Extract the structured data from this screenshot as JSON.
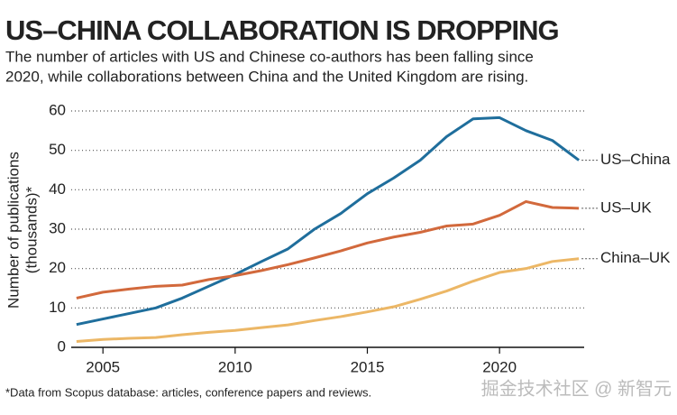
{
  "chart_data": {
    "type": "line",
    "title": "US–CHINA COLLABORATION IS DROPPING",
    "subtitle": [
      "The number of articles with US and Chinese co-authors has been falling since",
      "2020, while collaborations between China and the United Kingdom are rising."
    ],
    "ylabel": [
      "Number of publications",
      "(thousands)*"
    ],
    "footnote": "*Data from Scopus database: articles, conference papers and reviews.",
    "watermark": "掘金技术社区 @ 新智元",
    "x": [
      2004,
      2005,
      2006,
      2007,
      2008,
      2009,
      2010,
      2011,
      2012,
      2013,
      2014,
      2015,
      2016,
      2017,
      2018,
      2019,
      2020,
      2021,
      2022,
      2023
    ],
    "series": [
      {
        "name": "US–China",
        "color": "#1f6e9c",
        "values": [
          5.8,
          7.2,
          8.6,
          10,
          12.5,
          15.5,
          18.5,
          21.8,
          25,
          30,
          34,
          39,
          43,
          47.5,
          53.5,
          58,
          58.3,
          55,
          52.5,
          47.5
        ]
      },
      {
        "name": "US–UK",
        "color": "#d2693c",
        "values": [
          12.5,
          14,
          14.8,
          15.5,
          15.8,
          17.2,
          18.2,
          19.5,
          21,
          22.7,
          24.5,
          26.5,
          28,
          29.2,
          30.8,
          31.3,
          33.5,
          37,
          35.5,
          35.3
        ]
      },
      {
        "name": "China–UK",
        "color": "#ecb766",
        "values": [
          1.5,
          2,
          2.3,
          2.5,
          3.2,
          3.8,
          4.3,
          5,
          5.7,
          6.8,
          7.8,
          9,
          10.3,
          12.2,
          14.3,
          16.8,
          19,
          20,
          21.8,
          22.5
        ]
      }
    ],
    "xlim": [
      2003.8,
      2023.2
    ],
    "xticks": [
      2005,
      2010,
      2015,
      2020
    ],
    "ylim": [
      0,
      60
    ],
    "yticks": [
      0,
      10,
      20,
      30,
      40,
      50,
      60
    ],
    "grid": true
  }
}
